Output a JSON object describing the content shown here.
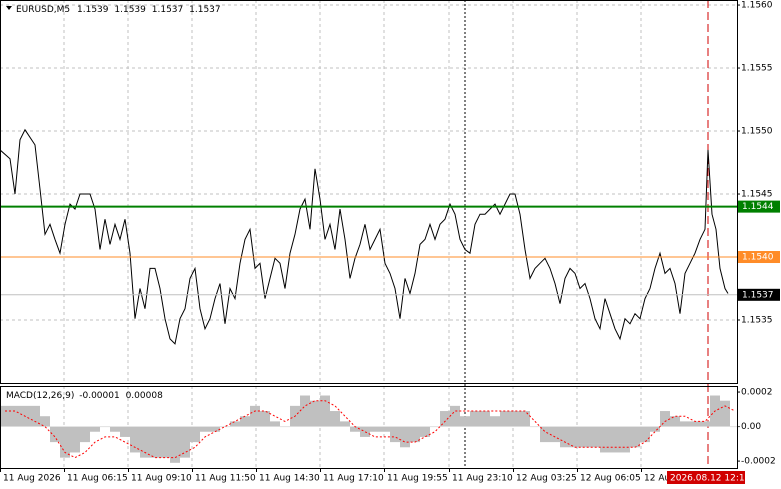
{
  "chart_data": [
    {
      "type": "line",
      "title": "EURUSD,M5",
      "ohlc": [
        1.1539,
        1.1539,
        1.1537,
        1.1537
      ],
      "xlim": [
        0,
        737
      ],
      "ylim": [
        1.153,
        1.15604
      ],
      "grid": true,
      "yticks": [
        {
          "value": 1.156,
          "label": "1.1560"
        },
        1.1555,
        {
          "value": 1.155,
          "label": "1.1550"
        },
        1.1545,
        {
          "value": 1.154,
          "label": "1.1540"
        },
        1.1535
      ],
      "levels": [
        {
          "value": 1.1544,
          "color": "#008000",
          "box": "#008000"
        },
        {
          "value": 1.154,
          "label": "1.1540",
          "color": "#ff8c28",
          "box": "#ff8c28"
        },
        {
          "value": 1.1537,
          "color": "#c0c0c0",
          "box": "#000000"
        }
      ],
      "x": [
        0,
        10,
        15,
        20,
        25,
        35,
        40,
        45,
        50,
        55,
        60,
        65,
        70,
        75,
        80,
        90,
        95,
        100,
        105,
        110,
        115,
        120,
        125,
        130,
        135,
        140,
        145,
        150,
        155,
        160,
        165,
        170,
        175,
        180,
        185,
        190,
        195,
        200,
        205,
        210,
        215,
        220,
        225,
        230,
        235,
        240,
        245,
        250,
        255,
        260,
        265,
        270,
        275,
        280,
        285,
        290,
        295,
        300,
        305,
        310,
        315,
        320,
        325,
        330,
        335,
        340,
        345,
        350,
        355,
        360,
        365,
        370,
        375,
        380,
        385,
        390,
        395,
        400,
        405,
        410,
        415,
        420,
        425,
        430,
        435,
        440,
        445,
        450,
        455,
        460,
        465,
        470,
        475,
        480,
        485,
        490,
        495,
        500,
        505,
        510,
        515,
        520,
        525,
        530,
        535,
        540,
        545,
        550,
        555,
        560,
        565,
        570,
        575,
        580,
        585,
        590,
        595,
        600,
        605,
        610,
        615,
        620,
        625,
        630,
        635,
        640,
        645,
        650,
        655,
        660,
        665,
        670,
        675,
        680,
        685,
        690,
        695,
        700,
        705,
        708,
        712,
        716,
        720,
        725,
        728
      ],
      "series": [
        {
          "color": "#000000",
          "values": [
            1.15485,
            1.15478,
            1.1545,
            1.15493,
            1.15501,
            1.15489,
            1.15454,
            1.15418,
            1.15426,
            1.15414,
            1.15403,
            1.15426,
            1.15442,
            1.15438,
            1.1545,
            1.1545,
            1.15438,
            1.15406,
            1.1543,
            1.1541,
            1.15426,
            1.15414,
            1.1543,
            1.15403,
            1.15351,
            1.15375,
            1.15359,
            1.15391,
            1.15391,
            1.15375,
            1.15351,
            1.15335,
            1.15331,
            1.15351,
            1.15359,
            1.15383,
            1.15391,
            1.15359,
            1.15343,
            1.15351,
            1.15367,
            1.15379,
            1.15347,
            1.15375,
            1.15367,
            1.15395,
            1.15414,
            1.15422,
            1.15391,
            1.15395,
            1.15367,
            1.15383,
            1.15399,
            1.15395,
            1.15375,
            1.15403,
            1.15418,
            1.15438,
            1.15446,
            1.15422,
            1.1547,
            1.15446,
            1.15414,
            1.15426,
            1.15406,
            1.15438,
            1.15414,
            1.15383,
            1.15399,
            1.1541,
            1.15426,
            1.15406,
            1.15414,
            1.15422,
            1.15395,
            1.15387,
            1.15375,
            1.15351,
            1.15383,
            1.15371,
            1.15387,
            1.1541,
            1.15414,
            1.15426,
            1.15414,
            1.15426,
            1.1543,
            1.15442,
            1.15434,
            1.15414,
            1.15406,
            1.15403,
            1.15426,
            1.15434,
            1.15434,
            1.15438,
            1.15442,
            1.15434,
            1.15442,
            1.1545,
            1.1545,
            1.15434,
            1.15406,
            1.15383,
            1.15391,
            1.15395,
            1.15399,
            1.15391,
            1.15379,
            1.15363,
            1.15383,
            1.15391,
            1.15387,
            1.15375,
            1.15379,
            1.15367,
            1.15351,
            1.15343,
            1.15367,
            1.15355,
            1.15343,
            1.15335,
            1.15351,
            1.15347,
            1.15355,
            1.15351,
            1.15367,
            1.15375,
            1.15391,
            1.15403,
            1.15387,
            1.15391,
            1.15379,
            1.15355,
            1.15387,
            1.15395,
            1.15403,
            1.15414,
            1.15422,
            1.15485,
            1.15434,
            1.15422,
            1.15391,
            1.15375,
            1.15371
          ]
        }
      ]
    },
    {
      "type": "macd",
      "title": "MACD(12,26,9)",
      "current": [
        -1e-05,
        8e-05
      ],
      "xlim": [
        0,
        737
      ],
      "ylim": [
        -0.00024,
        0.000235
      ],
      "yticks": [
        0.0002,
        {
          "value": 0,
          "label": "0.00"
        },
        -0.0002
      ],
      "xticks": [
        {
          "value": 0,
          "label": "11 Aug 2026"
        },
        {
          "value": 64,
          "label": "11 Aug 06:15"
        },
        {
          "value": 128,
          "label": "11 Aug 09:10"
        },
        {
          "value": 192,
          "label": "11 Aug 11:50"
        },
        {
          "value": 256,
          "label": "11 Aug 14:30"
        },
        {
          "value": 320,
          "label": "11 Aug 17:10"
        },
        {
          "value": 384,
          "label": "11 Aug 19:55"
        },
        {
          "value": 449,
          "label": "11 Aug 23:10"
        },
        {
          "value": 513,
          "label": "12 Aug 03:25"
        },
        {
          "value": 577,
          "label": "12 Aug 06:05"
        },
        {
          "value": 641,
          "label": "12 Aug 08:45"
        }
      ],
      "cursor_label": "2026.08.12 12:15",
      "x": [
        0,
        10,
        20,
        30,
        40,
        50,
        60,
        70,
        80,
        90,
        100,
        110,
        120,
        130,
        140,
        150,
        160,
        170,
        180,
        190,
        200,
        210,
        220,
        230,
        240,
        250,
        260,
        270,
        280,
        290,
        300,
        310,
        320,
        330,
        340,
        350,
        360,
        370,
        380,
        390,
        400,
        410,
        420,
        430,
        440,
        450,
        460,
        470,
        480,
        490,
        500,
        510,
        520,
        530,
        540,
        550,
        560,
        570,
        580,
        590,
        600,
        610,
        620,
        630,
        640,
        650,
        660,
        670,
        680,
        690,
        700,
        710,
        720,
        730
      ],
      "series": [
        {
          "color": "#c0c0c0",
          "values": [
            0.00012,
            0.00012,
            0.00012,
            0.00012,
            6e-05,
            -9e-05,
            -0.00018,
            -0.00015,
            -9e-05,
            -3e-05,
            0,
            -3e-05,
            -6e-05,
            -0.00015,
            -0.00018,
            -0.00018,
            -0.00018,
            -0.00021,
            -0.00018,
            -9e-05,
            -3e-05,
            -3e-05,
            0,
            3e-05,
            6e-05,
            0.00012,
            9e-05,
            3e-05,
            0,
            0.00012,
            0.00018,
            0.00015,
            0.00018,
            9e-05,
            3e-05,
            -3e-05,
            -6e-05,
            -3e-05,
            -3e-05,
            -9e-05,
            -0.00012,
            -9e-05,
            -6e-05,
            0,
            9e-05,
            0.00012,
            6e-05,
            9e-05,
            9e-05,
            6e-05,
            9e-05,
            9e-05,
            9e-05,
            0,
            -9e-05,
            -9e-05,
            -0.00012,
            -0.00012,
            -0.00012,
            -0.00012,
            -0.00015,
            -0.00015,
            -0.00015,
            -0.00012,
            -9e-05,
            -3e-05,
            9e-05,
            6e-05,
            3e-05,
            3e-05,
            3e-05,
            0.00018,
            0.00015,
            0
          ]
        },
        {
          "color": "#ff0000",
          "values": [
            9e-05,
            9e-05,
            6e-05,
            3e-05,
            0,
            -6e-05,
            -0.00015,
            -0.00018,
            -0.00015,
            -9e-05,
            -6e-05,
            -6e-05,
            -9e-05,
            -0.00012,
            -0.00015,
            -0.00018,
            -0.00018,
            -0.00018,
            -0.00015,
            -0.00012,
            -6e-05,
            -3e-05,
            0,
            3e-05,
            6e-05,
            9e-05,
            9e-05,
            6e-05,
            3e-05,
            6e-05,
            0.00012,
            0.00015,
            0.00015,
            0.00012,
            6e-05,
            0,
            -3e-05,
            -6e-05,
            -6e-05,
            -6e-05,
            -9e-05,
            -9e-05,
            -6e-05,
            -3e-05,
            3e-05,
            9e-05,
            9e-05,
            9e-05,
            9e-05,
            9e-05,
            9e-05,
            9e-05,
            9e-05,
            3e-05,
            -3e-05,
            -6e-05,
            -9e-05,
            -0.00012,
            -0.00012,
            -0.00012,
            -0.00012,
            -0.00012,
            -0.00012,
            -0.00012,
            -9e-05,
            -3e-05,
            3e-05,
            6e-05,
            6e-05,
            3e-05,
            3e-05,
            9e-05,
            0.00012,
            9e-05
          ]
        }
      ]
    }
  ]
}
